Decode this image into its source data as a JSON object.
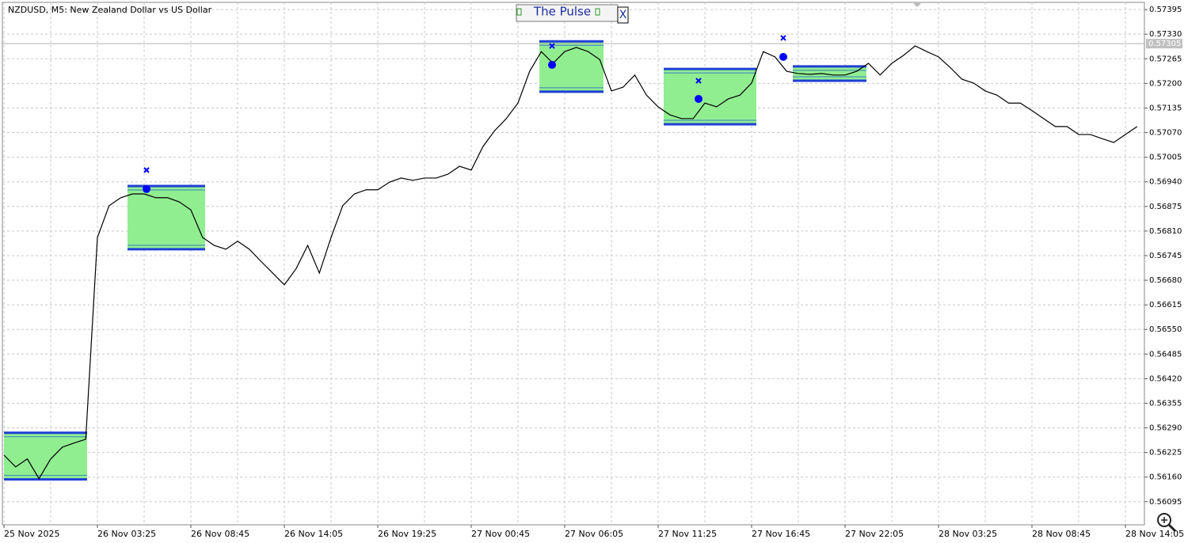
{
  "chart_data": {
    "type": "line",
    "title": "NZDUSD, M5:  New Zealand Dollar vs US Dollar",
    "panel_title": "The Pulse",
    "close_button": "X",
    "categories": [
      "25 Nov 2025",
      null,
      null,
      null,
      null,
      null,
      null,
      null,
      "26 Nov 03:25",
      null,
      null,
      null,
      null,
      null,
      null,
      null,
      "26 Nov 08:45",
      null,
      null,
      null,
      null,
      null,
      null,
      null,
      "26 Nov 14:05",
      null,
      null,
      null,
      null,
      null,
      null,
      null,
      "26 Nov 19:25",
      null,
      null,
      null,
      null,
      null,
      null,
      null,
      "27 Nov 00:45",
      null,
      null,
      null,
      null,
      null,
      null,
      null,
      "27 Nov 06:05",
      null,
      null,
      null,
      null,
      null,
      null,
      null,
      "27 Nov 11:25",
      null,
      null,
      null,
      null,
      null,
      null,
      null,
      "27 Nov 16:45",
      null,
      null,
      null,
      null,
      null,
      null,
      null,
      "27 Nov 22:05",
      null,
      null,
      null,
      null,
      null,
      null,
      null,
      "28 Nov 03:25",
      null,
      null,
      null,
      null,
      null,
      null,
      null,
      "28 Nov 08:45",
      null,
      null,
      null,
      null,
      null,
      null,
      null,
      "28 Nov 14:05",
      null
    ],
    "series": [
      {
        "color": "#000000",
        "values": [
          0.56218,
          0.56187,
          0.56208,
          0.56156,
          0.56208,
          0.56239,
          0.5625,
          0.5626,
          0.56793,
          0.56877,
          0.56898,
          0.56908,
          0.56908,
          0.56898,
          0.56898,
          0.56887,
          0.56866,
          0.56793,
          0.56772,
          0.56762,
          0.56783,
          0.56762,
          0.5673,
          0.56699,
          0.56668,
          0.5671,
          0.56772,
          0.56699,
          0.56793,
          0.56877,
          0.56908,
          0.56919,
          0.56919,
          0.56939,
          0.5695,
          0.56944,
          0.5695,
          0.5695,
          0.5696,
          0.56981,
          0.56971,
          0.57033,
          0.57075,
          0.57107,
          0.57148,
          0.57232,
          0.57284,
          0.57253,
          0.57284,
          0.57295,
          0.57284,
          0.57263,
          0.5718,
          0.5719,
          0.57222,
          0.57169,
          0.57138,
          0.57117,
          0.57107,
          0.57107,
          0.57148,
          0.57138,
          0.57159,
          0.57169,
          0.57201,
          0.57284,
          0.5727,
          0.57232,
          0.57226,
          0.57224,
          0.57226,
          0.57222,
          0.57222,
          0.57232,
          0.57253,
          0.57222,
          0.57253,
          0.57274,
          0.57299,
          0.57284,
          0.5727,
          0.57242,
          0.57211,
          0.57201,
          0.5718,
          0.57169,
          0.57148,
          0.57148,
          0.57128,
          0.57107,
          0.57086,
          0.57086,
          0.57065,
          0.57065,
          0.57054,
          0.57044,
          0.57065,
          0.57086
        ]
      }
    ],
    "zones": [
      {
        "top": 0.56277,
        "bottom": 0.56154,
        "color": "#90ee90"
      },
      {
        "top": 0.56929,
        "bottom": 0.56762,
        "color": "#90ee90"
      },
      {
        "top": 0.57311,
        "bottom": 0.57178,
        "color": "#90ee90"
      },
      {
        "top": 0.57238,
        "bottom": 0.57092,
        "color": "#90ee90"
      },
      {
        "top": 0.57245,
        "bottom": 0.57207,
        "color": "#90ee90"
      }
    ],
    "zone_border_color": "#1f3fd6",
    "signals": [
      {
        "dot": 0.56921,
        "cross": 0.56971
      },
      {
        "dot": 0.57249,
        "cross": 0.57299
      },
      {
        "dot": 0.57159,
        "cross": 0.57207
      },
      {
        "dot": 0.5727,
        "cross": 0.5732
      }
    ],
    "signal_color": "#0000ff",
    "current_price": 0.57305,
    "ylim": [
      0.56034,
      0.57414
    ],
    "yticks": [
      0.57395,
      {
        "value": 0.5733,
        "label": "0.57330"
      },
      0.57265,
      {
        "value": 0.572,
        "label": "0.57200"
      },
      0.57135,
      {
        "value": 0.5707,
        "label": "0.57070"
      },
      0.57005,
      {
        "value": 0.5694,
        "label": "0.56940"
      },
      0.56875,
      {
        "value": 0.5681,
        "label": "0.56810"
      },
      0.56745,
      {
        "value": 0.5668,
        "label": "0.56680"
      },
      0.56615,
      {
        "value": 0.5655,
        "label": "0.56550"
      },
      0.56485,
      {
        "value": 0.5642,
        "label": "0.56420"
      },
      0.56355,
      {
        "value": 0.5629,
        "label": "0.56290"
      },
      0.56225,
      {
        "value": 0.5616,
        "label": "0.56160"
      },
      0.56095
    ],
    "grid": true
  }
}
